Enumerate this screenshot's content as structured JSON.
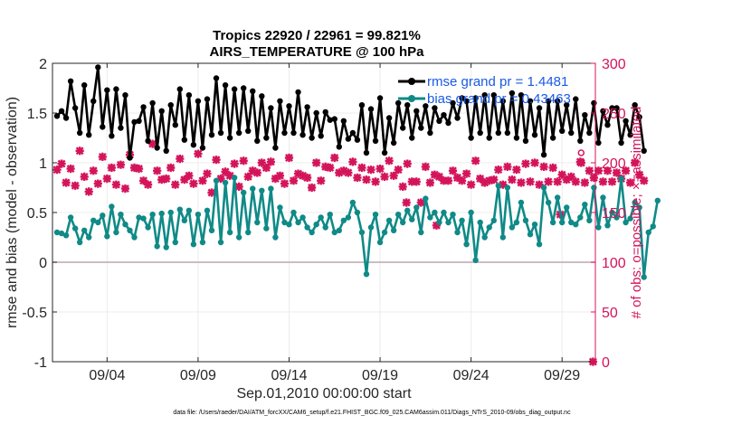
{
  "chart_data": {
    "type": "line",
    "title_line1": "Tropics 22920 / 22961 = 99.821%",
    "title_line2": "AIRS_TEMPERATURE @ 100 hPa",
    "xlabel": "Sep.01,2010 00:00:00 start",
    "ylabel_left": "rmse and bias (model - observation)",
    "ylabel_right": "# of obs: o=possible; ×=assimilated",
    "footer": "data file: /Users/raeder/DAI/ATM_forcXX/CAM6_setup/f.e21.FHIST_BGC.f09_025.CAM6assim.011/Diags_NTrS_2010-09/obs_diag_output.nc",
    "x_tick_labels": [
      "09/04",
      "09/09",
      "09/14",
      "09/19",
      "09/24",
      "09/29"
    ],
    "x_tick_days": [
      4,
      9,
      14,
      19,
      24,
      29
    ],
    "xlim": [
      1.0,
      30.83
    ],
    "y_left_ticks": [
      "-1",
      "-0.5",
      "0",
      "0.5",
      "1",
      "1.5",
      "2"
    ],
    "y_left_tick_values": [
      -1,
      -0.5,
      0,
      0.5,
      1,
      1.5,
      2
    ],
    "ylim_left": [
      -1,
      2
    ],
    "y_right_ticks": [
      "0",
      "50",
      "100",
      "150",
      "200",
      "250",
      "300"
    ],
    "y_right_tick_values": [
      0,
      50,
      100,
      150,
      200,
      250,
      300
    ],
    "ylim_right": [
      0,
      300
    ],
    "time_start_day": 1.25,
    "time_step_days": 0.25,
    "series": [
      {
        "name": "rmse",
        "legend": "rmse grand pr = 1.4481",
        "color": "#000000",
        "values": [
          1.47,
          1.52,
          1.45,
          1.82,
          1.55,
          1.3,
          1.78,
          1.28,
          1.62,
          1.96,
          1.36,
          1.73,
          1.27,
          1.74,
          1.35,
          1.68,
          1.05,
          1.41,
          1.42,
          1.56,
          1.22,
          1.6,
          1.15,
          1.52,
          1.12,
          1.58,
          1.38,
          1.74,
          1.23,
          1.68,
          1.18,
          1.62,
          1.15,
          1.64,
          1.28,
          1.85,
          1.3,
          1.78,
          1.25,
          1.74,
          1.3,
          1.75,
          1.32,
          1.72,
          1.22,
          1.67,
          1.25,
          1.55,
          1.15,
          1.62,
          1.3,
          1.57,
          1.3,
          1.71,
          1.28,
          1.56,
          1.25,
          1.5,
          1.27,
          1.51,
          1.43,
          1.44,
          1.16,
          1.42,
          1.24,
          1.3,
          1.23,
          1.58,
          1.1,
          1.54,
          1.22,
          1.65,
          1.1,
          1.45,
          1.2,
          1.6,
          1.35,
          1.58,
          1.25,
          1.52,
          1.35,
          1.57,
          1.3,
          1.55,
          1.42,
          1.48,
          1.4,
          1.6,
          1.45,
          1.65,
          1.62,
          1.25,
          1.65,
          1.3,
          1.68,
          1.25,
          1.68,
          1.3,
          1.62,
          1.3,
          1.7,
          1.25,
          1.68,
          1.22,
          1.62,
          1.28,
          1.55,
          1.08,
          1.62,
          1.25,
          1.62,
          1.32,
          1.58,
          1.3,
          1.64,
          1.22,
          1.48,
          1.3,
          1.6,
          1.2,
          1.52,
          1.38,
          1.55,
          1.55,
          1.2,
          1.42,
          1.28,
          1.58,
          1.46,
          1.12
        ],
        "marker": "circle"
      },
      {
        "name": "bias",
        "legend": "bias grand pr = 0.43463",
        "color": "#0f8a87",
        "values": [
          0.3,
          0.29,
          0.27,
          0.45,
          0.34,
          0.2,
          0.32,
          0.25,
          0.42,
          0.4,
          0.47,
          0.26,
          0.56,
          0.3,
          0.48,
          0.38,
          0.32,
          0.25,
          0.45,
          0.44,
          0.35,
          0.48,
          0.16,
          0.49,
          0.15,
          0.5,
          0.2,
          0.53,
          0.42,
          0.52,
          0.18,
          0.48,
          0.2,
          0.52,
          0.32,
          0.82,
          0.2,
          0.8,
          0.3,
          0.85,
          0.25,
          0.7,
          0.3,
          0.74,
          0.4,
          0.72,
          0.34,
          0.74,
          0.25,
          0.55,
          0.4,
          0.38,
          0.5,
          0.4,
          0.45,
          0.35,
          0.3,
          0.38,
          0.45,
          0.35,
          0.48,
          0.3,
          0.32,
          0.42,
          0.45,
          0.6,
          0.5,
          0.3,
          -0.12,
          0.35,
          0.48,
          0.2,
          0.3,
          0.42,
          0.32,
          0.48,
          0.4,
          0.52,
          0.43,
          0.55,
          0.3,
          0.64,
          0.45,
          0.5,
          0.4,
          0.5,
          0.4,
          0.48,
          0.3,
          0.42,
          0.18,
          0.5,
          0.02,
          0.4,
          0.25,
          0.35,
          0.42,
          0.77,
          0.25,
          0.75,
          0.35,
          0.4,
          0.6,
          0.42,
          0.28,
          0.38,
          0.18,
          0.75,
          0.6,
          0.4,
          0.65,
          0.4,
          0.55,
          0.4,
          0.38,
          0.45,
          0.58,
          0.42,
          0.75,
          0.35,
          0.65,
          0.37,
          0.5,
          0.45,
          0.84,
          0.4,
          0.44,
          0.6,
          0.55,
          -0.15,
          0.3,
          0.36,
          0.62
        ],
        "marker": "circle"
      },
      {
        "name": "assimilated",
        "color": "#d4145a",
        "axis": "right",
        "values": [
          193,
          199,
          180,
          194,
          177,
          212,
          186,
          171,
          192,
          179,
          206,
          184,
          195,
          178,
          198,
          174,
          208,
          195,
          194,
          182,
          178,
          219,
          192,
          183,
          184,
          195,
          178,
          204,
          183,
          187,
          179,
          209,
          182,
          189,
          170,
          203,
          184,
          191,
          187,
          199,
          176,
          202,
          186,
          192,
          190,
          200,
          195,
          201,
          184,
          187,
          179,
          205,
          182,
          189,
          187,
          185,
          175,
          200,
          182,
          196,
          195,
          205,
          190,
          192,
          190,
          201,
          185,
          195,
          183,
          193,
          181,
          194,
          186,
          202,
          187,
          193,
          176,
          199,
          181,
          181,
          160,
          196,
          180,
          188,
          186,
          182,
          182,
          192,
          185,
          182,
          189,
          178,
          202,
          184,
          180,
          182,
          183,
          193,
          178,
          196,
          183,
          193,
          180,
          199,
          181,
          200,
          178,
          196,
          181,
          195,
          181,
          188,
          183,
          186,
          181,
          201,
          180,
          192,
          185,
          192,
          181,
          192,
          181,
          190,
          184,
          192,
          180,
          200,
          188,
          182
        ],
        "marker": "x"
      },
      {
        "name": "possible",
        "color": "#d4145a",
        "axis": "right",
        "values": [
          193,
          199,
          180,
          194,
          177,
          212,
          186,
          171,
          192,
          179,
          206,
          184,
          195,
          178,
          198,
          174,
          208,
          195,
          194,
          182,
          178,
          219,
          192,
          183,
          184,
          195,
          178,
          204,
          183,
          187,
          179,
          209,
          182,
          189,
          170,
          203,
          184,
          191,
          187,
          199,
          176,
          202,
          186,
          192,
          190,
          200,
          195,
          201,
          184,
          187,
          179,
          205,
          182,
          189,
          187,
          185,
          175,
          200,
          182,
          196,
          195,
          205,
          190,
          192,
          190,
          201,
          185,
          195,
          183,
          193,
          181,
          194,
          186,
          202,
          187,
          193,
          176,
          199,
          181,
          181,
          160,
          196,
          180,
          188,
          186,
          182,
          182,
          192,
          185,
          182,
          189,
          178,
          202,
          184,
          180,
          182,
          183,
          193,
          178,
          196,
          183,
          193,
          180,
          199,
          181,
          200,
          178,
          196,
          181,
          195,
          181,
          188,
          183,
          186,
          181,
          201,
          180,
          192,
          185,
          192,
          181,
          192,
          181,
          190,
          184,
          192,
          180,
          200,
          188,
          182
        ],
        "marker": "o"
      }
    ],
    "extra_assimilated_points": [
      {
        "day": 20.45,
        "count": 160
      },
      {
        "day": 22.1,
        "count": 137
      },
      {
        "day": 28.9,
        "count": 148
      },
      {
        "day": 30.05,
        "count": 200
      },
      {
        "day": 30.7,
        "count": 0
      }
    ],
    "extra_possible_points": [
      {
        "day": 30.05,
        "count": 210
      }
    ]
  }
}
